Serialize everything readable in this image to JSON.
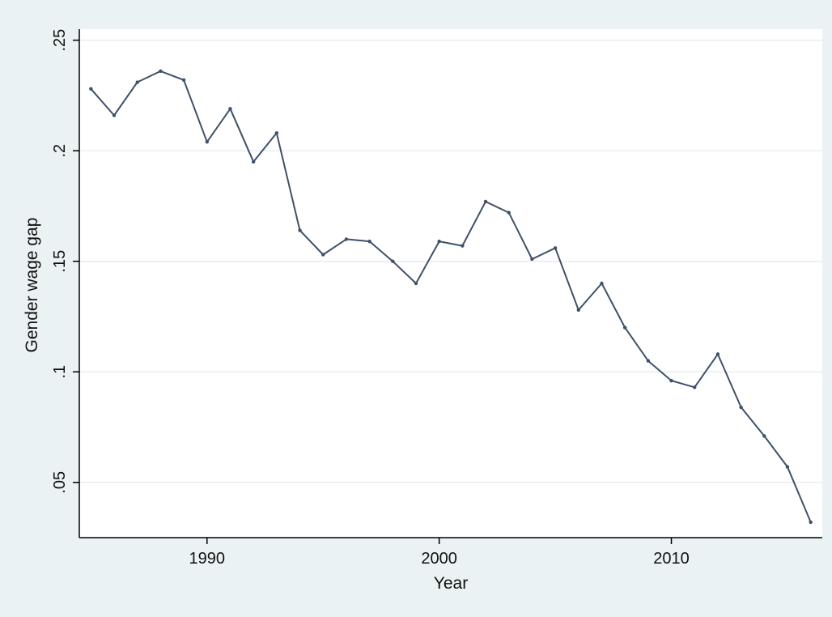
{
  "chart_data": {
    "type": "line",
    "xlabel": "Year",
    "ylabel": "Gender wage gap",
    "xlim": [
      1984.5,
      2016.5
    ],
    "ylim": [
      0.025,
      0.255
    ],
    "x_ticks": [
      1990,
      2000,
      2010
    ],
    "x_tick_labels": [
      "1990",
      "2000",
      "2010"
    ],
    "y_ticks": [
      0.05,
      0.1,
      0.15,
      0.2,
      0.25
    ],
    "y_tick_labels": [
      ".05",
      ".1",
      ".15",
      ".2",
      ".25"
    ],
    "grid": true,
    "legend": "none",
    "colors": {
      "background": "#eaf2f3",
      "plot_area": "#ffffff",
      "line": "#3e5168",
      "grid": "#e7eef0",
      "axis": "#000000"
    },
    "series": [
      {
        "x": [
          1985,
          1986,
          1987,
          1988,
          1989,
          1990,
          1991,
          1992,
          1993,
          1994,
          1995,
          1996,
          1997,
          1998,
          1999,
          2000,
          2001,
          2002,
          2003,
          2004,
          2005,
          2006,
          2007,
          2008,
          2009,
          2010,
          2011,
          2012,
          2013,
          2014,
          2015,
          2016
        ],
        "y": [
          0.228,
          0.216,
          0.231,
          0.236,
          0.232,
          0.204,
          0.219,
          0.195,
          0.208,
          0.164,
          0.153,
          0.16,
          0.159,
          0.15,
          0.14,
          0.159,
          0.157,
          0.177,
          0.172,
          0.151,
          0.156,
          0.128,
          0.14,
          0.12,
          0.105,
          0.096,
          0.093,
          0.108,
          0.084,
          0.071,
          0.057,
          0.032
        ]
      }
    ]
  }
}
